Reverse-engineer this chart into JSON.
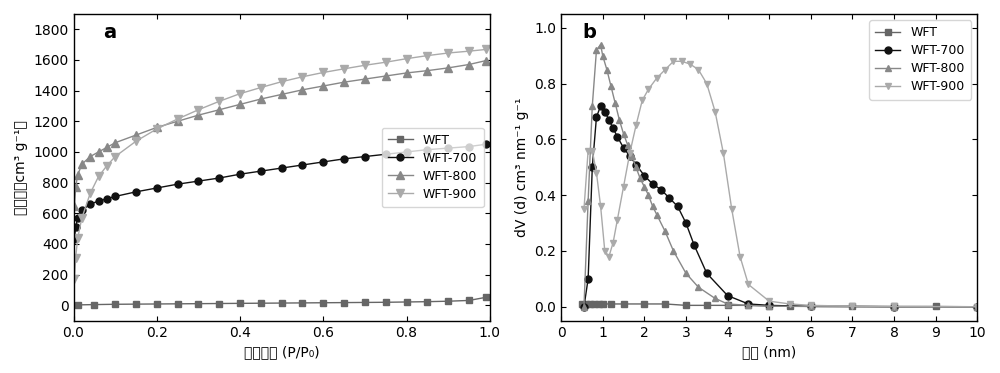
{
  "fig_width": 10.0,
  "fig_height": 3.73,
  "dpi": 100,
  "panel_a": {
    "label": "a",
    "xlabel": "相对压力 (P/P₀)",
    "ylabel": "吸附量（cm³ g⁻¹）",
    "xlim": [
      0.0,
      1.0
    ],
    "ylim": [
      -100,
      1900
    ],
    "yticks": [
      0,
      200,
      400,
      600,
      800,
      1000,
      1200,
      1400,
      1600,
      1800
    ],
    "xticks": [
      0.0,
      0.2,
      0.4,
      0.6,
      0.8,
      1.0
    ],
    "WFT": {
      "x": [
        0.01,
        0.05,
        0.1,
        0.15,
        0.2,
        0.25,
        0.3,
        0.35,
        0.4,
        0.45,
        0.5,
        0.55,
        0.6,
        0.65,
        0.7,
        0.75,
        0.8,
        0.85,
        0.9,
        0.95,
        0.99
      ],
      "y": [
        3,
        5,
        7,
        8,
        9,
        10,
        11,
        12,
        13,
        14,
        15,
        16,
        17,
        18,
        19,
        20,
        22,
        24,
        27,
        32,
        52
      ],
      "color": "#666666",
      "marker": "s",
      "markersize": 4,
      "label": "WFT"
    },
    "WFT700": {
      "x": [
        0.002,
        0.005,
        0.01,
        0.02,
        0.04,
        0.06,
        0.08,
        0.1,
        0.15,
        0.2,
        0.25,
        0.3,
        0.35,
        0.4,
        0.45,
        0.5,
        0.55,
        0.6,
        0.65,
        0.7,
        0.75,
        0.8,
        0.85,
        0.9,
        0.95,
        0.99
      ],
      "y": [
        430,
        510,
        570,
        620,
        660,
        680,
        695,
        710,
        740,
        765,
        790,
        810,
        830,
        855,
        875,
        895,
        915,
        935,
        955,
        970,
        985,
        1000,
        1015,
        1025,
        1035,
        1050
      ],
      "color": "#111111",
      "marker": "o",
      "markersize": 5,
      "label": "WFT-700"
    },
    "WFT800": {
      "x": [
        0.002,
        0.005,
        0.01,
        0.02,
        0.04,
        0.06,
        0.08,
        0.1,
        0.15,
        0.2,
        0.25,
        0.3,
        0.35,
        0.4,
        0.45,
        0.5,
        0.55,
        0.6,
        0.65,
        0.7,
        0.75,
        0.8,
        0.85,
        0.9,
        0.95,
        0.99
      ],
      "y": [
        650,
        770,
        850,
        920,
        970,
        1000,
        1030,
        1060,
        1110,
        1160,
        1200,
        1240,
        1275,
        1310,
        1345,
        1375,
        1405,
        1430,
        1455,
        1475,
        1495,
        1515,
        1530,
        1548,
        1570,
        1595
      ],
      "color": "#888888",
      "marker": "^",
      "markersize": 6,
      "label": "WFT-800"
    },
    "WFT900": {
      "x": [
        0.002,
        0.005,
        0.01,
        0.02,
        0.04,
        0.06,
        0.08,
        0.1,
        0.15,
        0.2,
        0.25,
        0.3,
        0.35,
        0.4,
        0.45,
        0.5,
        0.55,
        0.6,
        0.65,
        0.7,
        0.75,
        0.8,
        0.85,
        0.9,
        0.95,
        0.99
      ],
      "y": [
        170,
        310,
        440,
        570,
        730,
        840,
        910,
        970,
        1070,
        1150,
        1215,
        1275,
        1330,
        1380,
        1420,
        1458,
        1490,
        1518,
        1542,
        1565,
        1585,
        1608,
        1628,
        1645,
        1657,
        1668
      ],
      "color": "#aaaaaa",
      "marker": "v",
      "markersize": 6,
      "label": "WFT-900"
    }
  },
  "panel_b": {
    "label": "b",
    "xlabel": "孔径 (nm)",
    "ylabel": "dV (d) cm³ nm⁻¹ g⁻¹",
    "xlim": [
      0.5,
      10.0
    ],
    "ylim": [
      -0.05,
      1.05
    ],
    "yticks": [
      0.0,
      0.2,
      0.4,
      0.6,
      0.8,
      1.0
    ],
    "xticks": [
      0,
      1,
      2,
      3,
      4,
      5,
      6,
      7,
      8,
      9,
      10
    ],
    "WFT": {
      "x": [
        0.5,
        0.6,
        0.7,
        0.8,
        0.9,
        1.0,
        1.2,
        1.5,
        2.0,
        2.5,
        3.0,
        3.5,
        4.0,
        4.5,
        5.0,
        5.5,
        6.0,
        7.0,
        8.0,
        9.0,
        10.0
      ],
      "y": [
        0.01,
        0.01,
        0.01,
        0.01,
        0.01,
        0.01,
        0.01,
        0.01,
        0.01,
        0.01,
        0.005,
        0.005,
        0.005,
        0.005,
        0.003,
        0.003,
        0.002,
        0.002,
        0.001,
        0.001,
        0.0
      ],
      "color": "#666666",
      "marker": "s",
      "markersize": 4,
      "label": "WFT"
    },
    "WFT700": {
      "x": [
        0.55,
        0.65,
        0.75,
        0.85,
        0.95,
        1.05,
        1.15,
        1.25,
        1.35,
        1.5,
        1.65,
        1.8,
        2.0,
        2.2,
        2.4,
        2.6,
        2.8,
        3.0,
        3.2,
        3.5,
        4.0,
        4.5,
        5.0,
        6.0,
        8.0,
        10.0
      ],
      "y": [
        0.0,
        0.1,
        0.5,
        0.68,
        0.72,
        0.7,
        0.67,
        0.64,
        0.61,
        0.57,
        0.54,
        0.51,
        0.47,
        0.44,
        0.42,
        0.39,
        0.36,
        0.3,
        0.22,
        0.12,
        0.04,
        0.01,
        0.005,
        0.001,
        0.0,
        0.0
      ],
      "color": "#111111",
      "marker": "o",
      "markersize": 5,
      "label": "WFT-700"
    },
    "WFT800": {
      "x": [
        0.55,
        0.65,
        0.75,
        0.85,
        0.95,
        1.0,
        1.1,
        1.2,
        1.3,
        1.4,
        1.5,
        1.6,
        1.7,
        1.8,
        1.9,
        2.0,
        2.1,
        2.2,
        2.3,
        2.5,
        2.7,
        3.0,
        3.3,
        3.7,
        4.0,
        4.5,
        5.0,
        6.0,
        8.0,
        10.0
      ],
      "y": [
        0.0,
        0.38,
        0.72,
        0.92,
        0.94,
        0.9,
        0.85,
        0.79,
        0.73,
        0.67,
        0.62,
        0.58,
        0.54,
        0.5,
        0.46,
        0.43,
        0.4,
        0.36,
        0.33,
        0.27,
        0.2,
        0.12,
        0.07,
        0.03,
        0.01,
        0.005,
        0.002,
        0.001,
        0.0,
        0.0
      ],
      "color": "#888888",
      "marker": "^",
      "markersize": 5,
      "label": "WFT-800"
    },
    "WFT900": {
      "x": [
        0.55,
        0.65,
        0.75,
        0.85,
        0.95,
        1.05,
        1.15,
        1.25,
        1.35,
        1.5,
        1.65,
        1.8,
        1.95,
        2.1,
        2.3,
        2.5,
        2.7,
        2.9,
        3.1,
        3.3,
        3.5,
        3.7,
        3.9,
        4.1,
        4.3,
        4.5,
        5.0,
        5.5,
        6.0,
        7.0,
        8.0,
        10.0
      ],
      "y": [
        0.35,
        0.56,
        0.56,
        0.48,
        0.36,
        0.2,
        0.18,
        0.23,
        0.31,
        0.43,
        0.55,
        0.65,
        0.74,
        0.78,
        0.82,
        0.85,
        0.88,
        0.88,
        0.87,
        0.85,
        0.8,
        0.7,
        0.55,
        0.35,
        0.18,
        0.08,
        0.02,
        0.01,
        0.005,
        0.002,
        0.001,
        0.0
      ],
      "color": "#aaaaaa",
      "marker": "v",
      "markersize": 5,
      "label": "WFT-900"
    }
  }
}
